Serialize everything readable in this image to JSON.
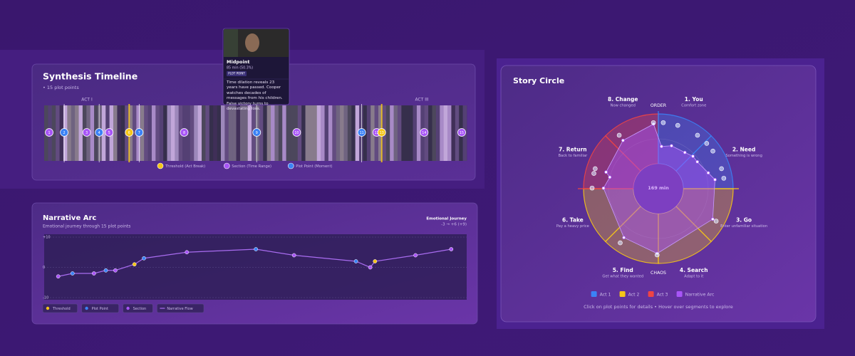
{
  "tooltip": {
    "title": "Midpoint",
    "time": "85 min (50.3%)",
    "tag": "PLOT POINT",
    "text": "Time dilation reveals 23 years have passed. Cooper watches decades of messages from his children. False victory turns to devastating loss."
  },
  "chart_data": [
    {
      "type": "timeline",
      "title": "Synthesis Timeline",
      "subtitle": "• 15 plot points",
      "acts": [
        "ACT I",
        "ACT III"
      ],
      "x": [
        2,
        8,
        17,
        22,
        26,
        34,
        38,
        56,
        85,
        101,
        127,
        133,
        135,
        152,
        167
      ],
      "labels": [
        "1",
        "2",
        "3",
        "4",
        "5",
        "6",
        "7",
        "8",
        "9",
        "10",
        "11",
        "12",
        "13",
        "14",
        "15"
      ],
      "kinds": [
        "section",
        "plot",
        "section",
        "plot",
        "section",
        "threshold",
        "plot",
        "section",
        "plot",
        "section",
        "plot",
        "section",
        "threshold",
        "section",
        "section"
      ],
      "xlim": [
        0,
        169
      ],
      "legend": [
        {
          "name": "Threshold (Act Break)",
          "kind": "threshold",
          "color": "#f5c518"
        },
        {
          "name": "Section (Time Range)",
          "kind": "section",
          "color": "#a855f7"
        },
        {
          "name": "Plot Point (Moment)",
          "kind": "plot",
          "color": "#3b82f6"
        }
      ]
    },
    {
      "type": "line",
      "title": "Narrative Arc",
      "subtitle": "Emotional journey through 15 plot points",
      "note_title": "Emotional Journey",
      "note": "-3 → +6 (+9)",
      "series": [
        {
          "name": "Narrative Flow",
          "color": "#a96cf0",
          "values": [
            -3,
            -2,
            -2,
            -1,
            -1,
            1,
            3,
            5,
            6,
            4,
            2,
            0,
            2,
            4,
            6
          ]
        }
      ],
      "ylim": [
        -10,
        10
      ],
      "yticks": [
        {
          "value": 10,
          "label": "+10"
        },
        0,
        {
          "value": -10,
          "label": "-10"
        }
      ],
      "legend": [
        {
          "name": "Threshold",
          "kind": "threshold"
        },
        {
          "name": "Plot Point",
          "kind": "plot"
        },
        {
          "name": "Section",
          "kind": "section"
        }
      ]
    },
    {
      "type": "circle",
      "title": "Story Circle",
      "center_label": "169 min",
      "poles": [
        "ORDER",
        "CHAOS"
      ],
      "segments": [
        {
          "name": "1. You",
          "desc": "Comfort zone",
          "act": 0
        },
        {
          "name": "2. Need",
          "desc": "Something is wrong",
          "act": 0
        },
        {
          "name": "3. Go",
          "desc": "Enter unfamiliar situation",
          "act": 1
        },
        {
          "name": "4. Search",
          "desc": "Adapt to it",
          "act": 1
        },
        {
          "name": "5. Find",
          "desc": "Get what they wanted",
          "act": 1
        },
        {
          "name": "6. Take",
          "desc": "Pay a heavy price",
          "act": 1
        },
        {
          "name": "7. Return",
          "desc": "Back to familiar",
          "act": 2
        },
        {
          "name": "8. Change",
          "desc": "Now changed",
          "act": 2
        }
      ],
      "legend": [
        {
          "name": "Act 1",
          "color": "#3b82f6"
        },
        {
          "name": "Act 2",
          "color": "#f5c518"
        },
        {
          "name": "Act 3",
          "color": "#ef4444"
        },
        {
          "name": "Narrative Arc",
          "color": "#a855f7"
        }
      ],
      "hint": "Click on plot points for details • Hover over segments to explore"
    }
  ]
}
